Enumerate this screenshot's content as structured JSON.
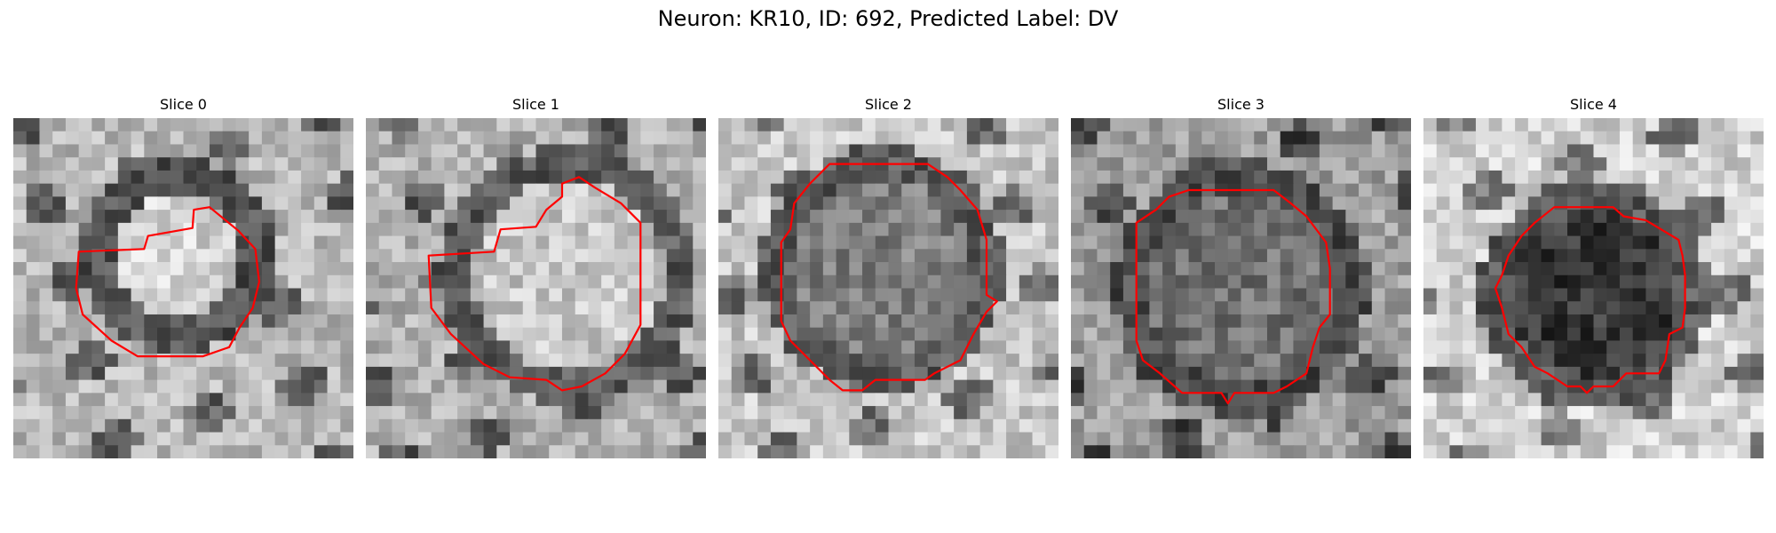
{
  "figure": {
    "title": "Neuron: KR10, ID: 692, Predicted Label: DV"
  },
  "colors": {
    "contour": "#ff0000",
    "colormap": "grayscale"
  },
  "panels": [
    {
      "title": "Slice 0"
    },
    {
      "title": "Slice 1"
    },
    {
      "title": "Slice 2"
    },
    {
      "title": "Slice 3"
    },
    {
      "title": "Slice 4"
    }
  ]
}
